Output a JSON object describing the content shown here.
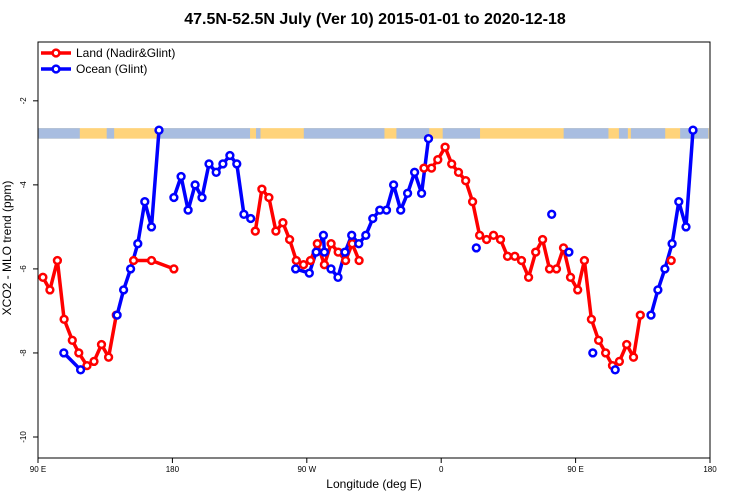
{
  "chart_data": {
    "type": "line",
    "title": "47.5N-52.5N July (Ver 10)   2015-01-01 to 2020-12-18",
    "xlabel": "Longitude (deg E)",
    "ylabel": "XCO2 - MLO trend (ppm)",
    "xlim": [
      90,
      540
    ],
    "ylim": [
      -10.5,
      -0.6
    ],
    "xticks": [
      {
        "value": 90,
        "label": "90 E"
      },
      {
        "value": 180,
        "label": "180"
      },
      {
        "value": 270,
        "label": "90 W"
      },
      {
        "value": 360,
        "label": "0"
      },
      {
        "value": 450,
        "label": "90 E"
      },
      {
        "value": 540,
        "label": "180"
      }
    ],
    "yticks": [
      {
        "value": -2,
        "label": "-2"
      },
      {
        "value": -4,
        "label": "-4"
      },
      {
        "value": -6,
        "label": "-6"
      },
      {
        "value": -8,
        "label": "-8"
      },
      {
        "value": -10,
        "label": "-10"
      }
    ],
    "legend_position": "top-left",
    "land_ocean_band": {
      "y_range": [
        -2.65,
        -2.9
      ],
      "land_color": "#ffd37a",
      "ocean_color": "#a8bde0"
    },
    "series": [
      {
        "name": "Land (Nadir&Glint)",
        "color": "#ff0000",
        "segments": [
          [
            [
              93.3,
              -6.2
            ],
            [
              98.0,
              -6.5
            ],
            [
              103.0,
              -5.8
            ],
            [
              107.5,
              -7.2
            ],
            [
              113.0,
              -7.7
            ],
            [
              117.3,
              -8.0
            ],
            [
              122.8,
              -8.3
            ],
            [
              127.5,
              -8.2
            ],
            [
              132.5,
              -7.8
            ],
            [
              137.3,
              -8.1
            ],
            [
              142.4,
              -7.1
            ]
          ],
          [
            [
              154.0,
              -5.8
            ],
            [
              166.0,
              -5.8
            ],
            [
              181.0,
              -6.0
            ]
          ],
          [
            [
              235.5,
              -5.1
            ],
            [
              239.9,
              -4.1
            ],
            [
              244.6,
              -4.3
            ],
            [
              249.3,
              -5.1
            ],
            [
              254.0,
              -4.9
            ],
            [
              258.5,
              -5.3
            ],
            [
              263.0,
              -5.8
            ],
            [
              267.8,
              -5.9
            ],
            [
              272.5,
              -5.8
            ],
            [
              277.0,
              -5.4
            ],
            [
              281.8,
              -5.9
            ],
            [
              286.3,
              -5.4
            ],
            [
              291.0,
              -5.6
            ],
            [
              296.0,
              -5.8
            ],
            [
              300.4,
              -5.4
            ],
            [
              305.0,
              -5.8
            ]
          ],
          [
            [
              348.5,
              -3.6
            ],
            [
              353.5,
              -3.6
            ],
            [
              357.7,
              -3.4
            ],
            [
              362.6,
              -3.1
            ],
            [
              367.0,
              -3.5
            ],
            [
              371.6,
              -3.7
            ],
            [
              376.4,
              -3.9
            ],
            [
              381.0,
              -4.4
            ],
            [
              385.7,
              -5.2
            ],
            [
              390.4,
              -5.3
            ],
            [
              395.0,
              -5.2
            ],
            [
              399.7,
              -5.3
            ],
            [
              404.4,
              -5.7
            ],
            [
              409.3,
              -5.7
            ],
            [
              413.8,
              -5.8
            ],
            [
              418.5,
              -6.2
            ],
            [
              423.3,
              -5.6
            ],
            [
              427.9,
              -5.3
            ],
            [
              432.5,
              -6.0
            ],
            [
              437.2,
              -6.0
            ],
            [
              441.9,
              -5.5
            ],
            [
              446.6,
              -6.2
            ],
            [
              451.4,
              -6.5
            ],
            [
              455.9,
              -5.8
            ],
            [
              460.6,
              -7.2
            ],
            [
              465.4,
              -7.7
            ],
            [
              470.1,
              -8.0
            ],
            [
              474.7,
              -8.3
            ],
            [
              479.3,
              -8.2
            ],
            [
              484.2,
              -7.8
            ],
            [
              488.8,
              -8.1
            ],
            [
              493.3,
              -7.1
            ]
          ],
          [
            [
              514.0,
              -5.8
            ]
          ]
        ]
      },
      {
        "name": "Ocean (Glint)",
        "color": "#0000ff",
        "segments": [
          [
            [
              107.3,
              -8.0
            ],
            [
              118.5,
              -8.4
            ]
          ],
          [
            [
              143.0,
              -7.1
            ],
            [
              147.3,
              -6.5
            ],
            [
              152.0,
              -6.0
            ],
            [
              156.8,
              -5.4
            ],
            [
              161.5,
              -4.4
            ],
            [
              166.0,
              -5.0
            ],
            [
              171.0,
              -2.7
            ]
          ],
          [
            [
              181.0,
              -4.3
            ],
            [
              185.8,
              -3.8
            ],
            [
              190.5,
              -4.6
            ],
            [
              195.2,
              -4.0
            ],
            [
              199.8,
              -4.3
            ],
            [
              204.5,
              -3.5
            ],
            [
              209.3,
              -3.7
            ],
            [
              213.8,
              -3.5
            ],
            [
              218.5,
              -3.3
            ],
            [
              223.1,
              -3.5
            ],
            [
              227.9,
              -4.7
            ],
            [
              232.4,
              -4.8
            ]
          ],
          [
            [
              262.5,
              -6.0
            ],
            [
              271.7,
              -6.1
            ],
            [
              276.3,
              -5.6
            ],
            [
              281.1,
              -5.2
            ],
            [
              281.8,
              -5.6
            ]
          ],
          [
            [
              286.2,
              -6.0
            ],
            [
              290.9,
              -6.2
            ],
            [
              295.6,
              -5.6
            ],
            [
              300.1,
              -5.2
            ],
            [
              304.8,
              -5.4
            ],
            [
              309.5,
              -5.2
            ],
            [
              314.2,
              -4.8
            ],
            [
              318.9,
              -4.6
            ],
            [
              323.4,
              -4.6
            ],
            [
              328.1,
              -4.0
            ],
            [
              332.9,
              -4.6
            ],
            [
              337.5,
              -4.2
            ],
            [
              342.2,
              -3.7
            ],
            [
              346.9,
              -4.2
            ],
            [
              351.5,
              -2.9
            ]
          ],
          [
            [
              383.5,
              -5.5
            ]
          ],
          [
            [
              434.0,
              -4.7
            ]
          ],
          [
            [
              445.5,
              -5.6
            ]
          ],
          [
            [
              461.5,
              -8.0
            ]
          ],
          [
            [
              476.5,
              -8.4
            ]
          ],
          [
            [
              500.5,
              -7.1
            ],
            [
              505.1,
              -6.5
            ],
            [
              509.8,
              -6.0
            ],
            [
              514.6,
              -5.4
            ],
            [
              519.1,
              -4.4
            ],
            [
              523.9,
              -5.0
            ],
            [
              528.6,
              -2.7
            ]
          ]
        ]
      }
    ]
  }
}
